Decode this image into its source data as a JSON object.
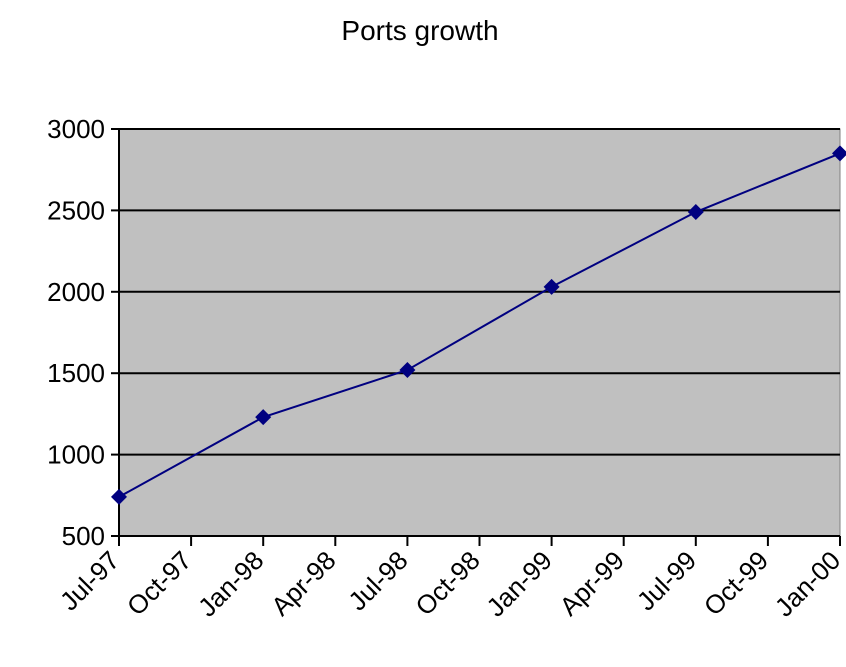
{
  "chart_data": {
    "type": "line",
    "title": "Ports growth",
    "xlabel": "",
    "ylabel": "",
    "categories": [
      "Jul-97",
      "Oct-97",
      "Jan-98",
      "Apr-98",
      "Jul-98",
      "Oct-98",
      "Jan-99",
      "Apr-99",
      "Jul-99",
      "Oct-99",
      "Jan-00"
    ],
    "series": [
      {
        "x": [
          "Jul-97",
          "Jan-98",
          "Jul-98",
          "Jan-99",
          "Jul-99",
          "Jan-00"
        ],
        "values": [
          740,
          1230,
          1520,
          2030,
          2490,
          2850
        ]
      }
    ],
    "ylim": [
      500,
      3000
    ],
    "yticks": [
      500,
      1000,
      1500,
      2000,
      2500,
      3000
    ],
    "grid": "horizontal",
    "legend": "none",
    "colors": {
      "plot_background": "#c0c0c0",
      "gridline": "#000000",
      "series": "#000080"
    }
  }
}
